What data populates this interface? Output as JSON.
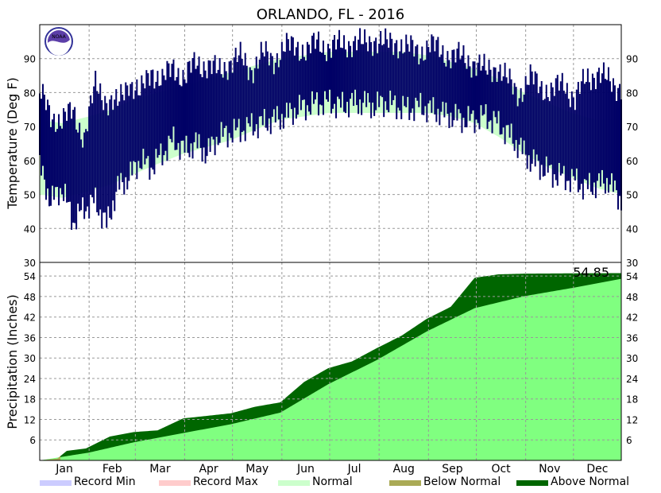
{
  "chart_data": {
    "type": "area",
    "title": "ORLANDO, FL - 2016",
    "months": [
      "Jan",
      "Feb",
      "Mar",
      "Apr",
      "May",
      "Jun",
      "Jul",
      "Aug",
      "Sep",
      "Oct",
      "Nov",
      "Dec"
    ],
    "colors": {
      "temp_observed": "#000066",
      "temp_normal": "#ccffcc",
      "precip_normal": "#80ff80",
      "precip_above": "#006600",
      "precip_below": "#aaaa55",
      "record_min": "#ccccff",
      "record_max": "#ffcccc"
    },
    "temperature": {
      "ylabel": "Temperature (Deg F)",
      "ylim": [
        30,
        100
      ],
      "yticks": [
        30,
        40,
        50,
        60,
        70,
        80,
        90
      ],
      "normal_band": {
        "x": [
          1,
          15,
          32,
          46,
          60,
          75,
          91,
          106,
          121,
          136,
          152,
          167,
          182,
          197,
          213,
          228,
          244,
          259,
          274,
          289,
          305,
          320,
          335,
          350,
          366
        ],
        "low": [
          50,
          49,
          51,
          53,
          56,
          59,
          62,
          64,
          66,
          69,
          72,
          73,
          74,
          74,
          74,
          74,
          74,
          73,
          71,
          67,
          62,
          58,
          55,
          52,
          50
        ],
        "high": [
          72,
          71,
          73,
          75,
          78,
          80,
          82,
          84,
          86,
          88,
          90,
          91,
          92,
          92,
          92,
          92,
          91,
          89,
          87,
          84,
          80,
          77,
          74,
          72,
          72
        ]
      },
      "observed": {
        "x": [
          1,
          8,
          15,
          22,
          29,
          36,
          43,
          50,
          57,
          64,
          71,
          78,
          85,
          92,
          99,
          106,
          113,
          120,
          127,
          134,
          141,
          148,
          155,
          162,
          169,
          176,
          183,
          190,
          197,
          204,
          211,
          218,
          225,
          232,
          239,
          246,
          253,
          260,
          267,
          274,
          281,
          288,
          295,
          302,
          309,
          316,
          323,
          330,
          337,
          344,
          351,
          358,
          366
        ],
        "low": [
          58,
          48,
          52,
          42,
          46,
          48,
          41,
          52,
          55,
          60,
          58,
          62,
          66,
          63,
          65,
          62,
          67,
          68,
          69,
          70,
          71,
          72,
          73,
          75,
          76,
          77,
          77,
          76,
          77,
          77,
          76,
          77,
          76,
          75,
          76,
          75,
          74,
          73,
          72,
          72,
          73,
          71,
          68,
          64,
          60,
          58,
          56,
          55,
          54,
          52,
          53,
          54,
          48
        ],
        "high": [
          80,
          73,
          72,
          74,
          67,
          82,
          78,
          76,
          84,
          79,
          87,
          83,
          88,
          84,
          89,
          88,
          86,
          89,
          90,
          87,
          91,
          90,
          93,
          94,
          92,
          95,
          93,
          94,
          95,
          94,
          96,
          94,
          95,
          93,
          92,
          94,
          92,
          91,
          90,
          89,
          86,
          88,
          83,
          80,
          84,
          82,
          80,
          83,
          78,
          84,
          86,
          83,
          82
        ]
      }
    },
    "precipitation": {
      "ylabel": "Precipitation (Inches)",
      "ylim": [
        0,
        58
      ],
      "yticks": [
        6,
        12,
        18,
        24,
        30,
        36,
        42,
        48,
        54
      ],
      "annual_total": "54.85",
      "normal_cumulative": {
        "x": [
          1,
          32,
          60,
          91,
          121,
          152,
          182,
          213,
          244,
          274,
          305,
          335,
          366
        ],
        "y": [
          0,
          2.3,
          5.3,
          8.0,
          10.6,
          14.0,
          22.3,
          29.5,
          37.8,
          44.6,
          48.1,
          50.5,
          53.2
        ]
      },
      "observed_cumulative": {
        "x": [
          1,
          12,
          18,
          30,
          45,
          60,
          75,
          91,
          105,
          121,
          136,
          152,
          167,
          182,
          197,
          213,
          228,
          244,
          259,
          274,
          289,
          305,
          320,
          335,
          350,
          366
        ],
        "y": [
          0,
          0.5,
          2.8,
          3.5,
          7.0,
          8.3,
          8.8,
          12.3,
          13.0,
          13.8,
          15.7,
          17.0,
          23.0,
          27.0,
          29.0,
          33.0,
          36.5,
          41.5,
          45.0,
          53.5,
          54.5,
          54.7,
          54.75,
          54.8,
          54.83,
          54.85
        ]
      }
    },
    "legend": [
      {
        "label": "Record Min",
        "color": "#ccccff"
      },
      {
        "label": "Record Max",
        "color": "#ffcccc"
      },
      {
        "label": "Normal",
        "color": "#ccffcc"
      },
      {
        "label": "Below Normal",
        "color": "#aaaa55"
      },
      {
        "label": "Above Normal",
        "color": "#006600"
      }
    ],
    "grid": true,
    "legend_position": "bottom",
    "logo_text": "NOAA"
  }
}
